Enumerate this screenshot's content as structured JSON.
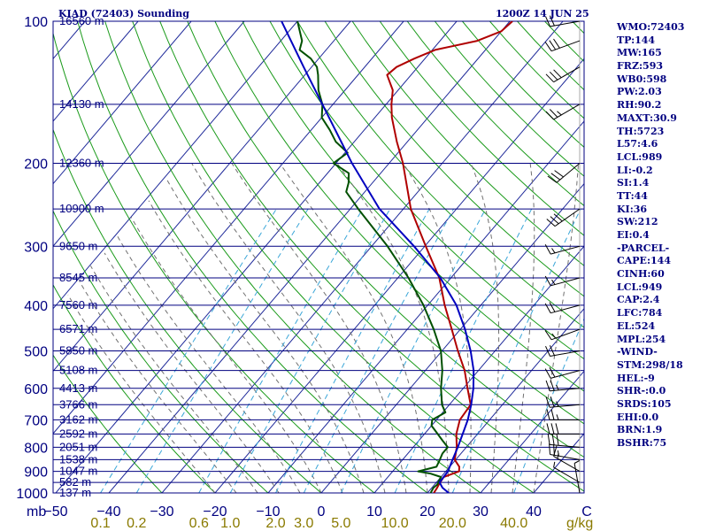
{
  "header": {
    "station": "KIAD (72403) Sounding",
    "time": "1200Z 14 JUN 25"
  },
  "indices": [
    "WMO:72403",
    "TP:144",
    "MW:165",
    "FRZ:593",
    "WB0:598",
    "PW:2.03",
    "RH:90.2",
    "MAXT:30.9",
    "TH:5723",
    "L57:4.6",
    "LCL:989",
    "LI:-0.2",
    "SI:1.4",
    "TT:44",
    "KI:36",
    "SW:212",
    "EI:0.4",
    "-PARCEL-",
    "CAPE:144",
    "CINH:60",
    "LCL:949",
    "CAP:2.4",
    "LFC:784",
    "EL:524",
    "MPL:254",
    "-WIND-",
    "STM:298/18",
    "HEL:-9",
    "SHR-:0.0",
    "SRDS:105",
    "EHI:0.0",
    "BRN:1.9",
    "BSHR:75"
  ],
  "colors": {
    "frame": "#000080",
    "temperature": "#b00000",
    "dewpoint": "#005000",
    "parcel": "#0000c0",
    "dry_adiabat": "#1a9a1a",
    "moist_adiabat": "#707070",
    "mixing_ratio": "#3aa6d8",
    "labels": "#000080",
    "mixing_label": "#8a7a00"
  },
  "chart_data": {
    "type": "line",
    "diagram": "Skew-T log-P",
    "pressure_unit_label": "mb",
    "temp_unit": "C",
    "plim": [
      1000,
      100
    ],
    "tlim_at_base": [
      -50,
      60
    ],
    "pressure_ticks": [
      100,
      200,
      300,
      400,
      500,
      600,
      700,
      800,
      900,
      1000
    ],
    "temp_ticks": [
      -50,
      -40,
      -30,
      -20,
      -10,
      0,
      10,
      20,
      30,
      40,
      50
    ],
    "temp_tick_labels": [
      "−50",
      "−40",
      "−30",
      "−20",
      "−10",
      "0",
      "10",
      "20",
      "30",
      "40",
      "C"
    ],
    "mixing_ratio_label_unit": "g/kg",
    "mixing_ratio_lines": [
      {
        "w": 0.1,
        "label": "0.1"
      },
      {
        "w": 0.2,
        "label": "0.2"
      },
      {
        "w": 0.6,
        "label": "0.6"
      },
      {
        "w": 1.0,
        "label": "1.0"
      },
      {
        "w": 2.0,
        "label": "2.0"
      },
      {
        "w": 3.0,
        "label": "3.0"
      },
      {
        "w": 5.0,
        "label": "5.0"
      },
      {
        "w": 10.0,
        "label": "10.0"
      },
      {
        "w": 20.0,
        "label": "20.0"
      },
      {
        "w": 40.0,
        "label": "40.0"
      }
    ],
    "height_labels": [
      {
        "p": 100,
        "label": "16560 m"
      },
      {
        "p": 150,
        "label": "14130 m"
      },
      {
        "p": 200,
        "label": "12360 m"
      },
      {
        "p": 250,
        "label": "10900 m"
      },
      {
        "p": 300,
        "label": "9650 m"
      },
      {
        "p": 350,
        "label": "8545 m"
      },
      {
        "p": 400,
        "label": "7560 m"
      },
      {
        "p": 450,
        "label": "6571 m"
      },
      {
        "p": 500,
        "label": "5850 m"
      },
      {
        "p": 550,
        "label": "5108 m"
      },
      {
        "p": 600,
        "label": "4413 m"
      },
      {
        "p": 650,
        "label": "3766 m"
      },
      {
        "p": 700,
        "label": "3162 m"
      },
      {
        "p": 750,
        "label": "2592 m"
      },
      {
        "p": 800,
        "label": "2051 m"
      },
      {
        "p": 850,
        "label": "1538 m"
      },
      {
        "p": 900,
        "label": "1047 m"
      },
      {
        "p": 950,
        "label": "582 m"
      },
      {
        "p": 1000,
        "label": "137 m"
      }
    ],
    "series": [
      {
        "points": [
          [
            1000,
            21.2
          ],
          [
            975,
            21.0
          ],
          [
            960,
            20.8
          ],
          [
            925,
            20.5
          ],
          [
            900,
            22.5
          ],
          [
            880,
            21.8
          ],
          [
            850,
            19.8
          ],
          [
            800,
            18.2
          ],
          [
            750,
            16.0
          ],
          [
            700,
            14.4
          ],
          [
            650,
            14.0
          ],
          [
            600,
            10.8
          ],
          [
            550,
            7.4
          ],
          [
            500,
            3.0
          ],
          [
            450,
            -1.6
          ],
          [
            400,
            -6.8
          ],
          [
            350,
            -12.2
          ],
          [
            300,
            -19.8
          ],
          [
            250,
            -28.6
          ],
          [
            200,
            -37.4
          ],
          [
            180,
            -42.0
          ],
          [
            160,
            -46.8
          ],
          [
            150,
            -49.0
          ],
          [
            140,
            -51.0
          ],
          [
            130,
            -54.5
          ],
          [
            125,
            -54.0
          ],
          [
            120,
            -52.0
          ],
          [
            115,
            -49.5
          ],
          [
            110,
            -43.0
          ],
          [
            105,
            -40.0
          ],
          [
            100,
            -39.5
          ]
        ]
      },
      {
        "points": [
          [
            1000,
            20.6
          ],
          [
            975,
            20.3
          ],
          [
            960,
            20.5
          ],
          [
            925,
            20.0
          ],
          [
            910,
            17.5
          ],
          [
            900,
            14.8
          ],
          [
            880,
            17.5
          ],
          [
            850,
            17.0
          ],
          [
            825,
            16.5
          ],
          [
            800,
            16.5
          ],
          [
            775,
            14.5
          ],
          [
            750,
            12.5
          ],
          [
            720,
            10.0
          ],
          [
            700,
            9.2
          ],
          [
            675,
            10.5
          ],
          [
            650,
            8.6
          ],
          [
            600,
            5.8
          ],
          [
            550,
            3.2
          ],
          [
            500,
            -0.2
          ],
          [
            450,
            -5.0
          ],
          [
            400,
            -10.8
          ],
          [
            350,
            -18.0
          ],
          [
            300,
            -27.0
          ],
          [
            250,
            -38.5
          ],
          [
            230,
            -43.5
          ],
          [
            220,
            -44.5
          ],
          [
            210,
            -46.0
          ],
          [
            200,
            -50.5
          ],
          [
            190,
            -49.5
          ],
          [
            180,
            -53.5
          ],
          [
            170,
            -56.5
          ],
          [
            160,
            -60.0
          ],
          [
            150,
            -62.0
          ],
          [
            140,
            -65.0
          ],
          [
            130,
            -67.5
          ],
          [
            125,
            -69.0
          ],
          [
            120,
            -71.5
          ],
          [
            115,
            -75.0
          ],
          [
            110,
            -76.0
          ],
          [
            100,
            -80.0
          ]
        ]
      },
      {
        "points": [
          [
            1000,
            24.0
          ],
          [
            975,
            22.0
          ],
          [
            950,
            20.6
          ],
          [
            900,
            20.4
          ],
          [
            850,
            19.4
          ],
          [
            800,
            18.4
          ],
          [
            750,
            17.2
          ],
          [
            700,
            15.9
          ],
          [
            650,
            14.1
          ],
          [
            600,
            11.9
          ],
          [
            550,
            9.1
          ],
          [
            500,
            5.4
          ],
          [
            450,
            0.9
          ],
          [
            400,
            -4.6
          ],
          [
            350,
            -12.0
          ],
          [
            300,
            -22.0
          ],
          [
            250,
            -34.5
          ],
          [
            200,
            -47.0
          ],
          [
            150,
            -62.0
          ],
          [
            125,
            -71.5
          ],
          [
            100,
            -83.0
          ]
        ]
      }
    ],
    "wind_barbs": [
      {
        "p": 1000,
        "dir": 350,
        "spd": 5
      },
      {
        "p": 950,
        "dir": 300,
        "spd": 5
      },
      {
        "p": 900,
        "dir": 300,
        "spd": 15
      },
      {
        "p": 850,
        "dir": 280,
        "spd": 25
      },
      {
        "p": 800,
        "dir": 275,
        "spd": 30
      },
      {
        "p": 750,
        "dir": 270,
        "spd": 30
      },
      {
        "p": 700,
        "dir": 270,
        "spd": 25
      },
      {
        "p": 650,
        "dir": 265,
        "spd": 25
      },
      {
        "p": 600,
        "dir": 265,
        "spd": 25
      },
      {
        "p": 550,
        "dir": 255,
        "spd": 20
      },
      {
        "p": 500,
        "dir": 260,
        "spd": 20
      },
      {
        "p": 450,
        "dir": 250,
        "spd": 15
      },
      {
        "p": 400,
        "dir": 255,
        "spd": 20
      },
      {
        "p": 350,
        "dir": 255,
        "spd": 15
      },
      {
        "p": 300,
        "dir": 255,
        "spd": 15
      },
      {
        "p": 250,
        "dir": 235,
        "spd": 30
      },
      {
        "p": 200,
        "dir": 230,
        "spd": 30
      },
      {
        "p": 150,
        "dir": 240,
        "spd": 25
      },
      {
        "p": 125,
        "dir": 240,
        "spd": 30
      },
      {
        "p": 110,
        "dir": 250,
        "spd": 30
      },
      {
        "p": 100,
        "dir": 260,
        "spd": 20
      }
    ]
  }
}
